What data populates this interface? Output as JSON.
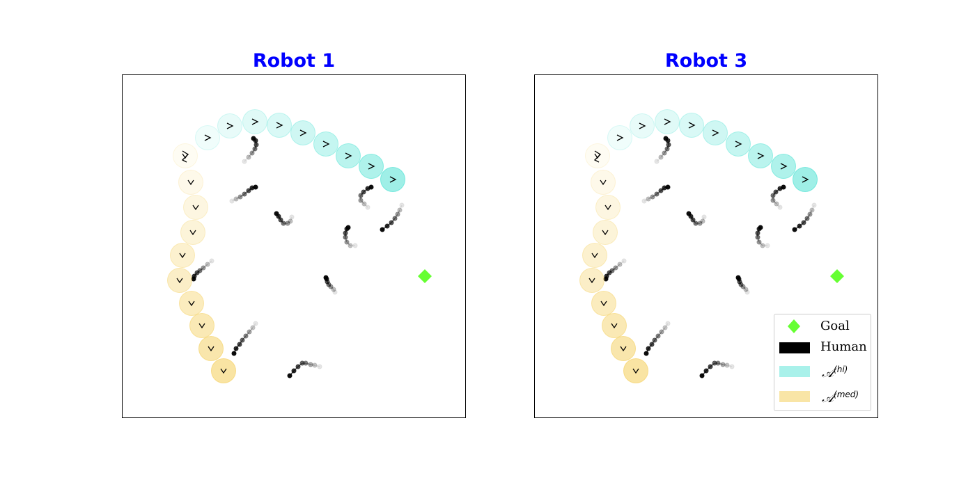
{
  "panels": [
    {
      "title": "Robot 1",
      "show_legend": false
    },
    {
      "title": "Robot 3",
      "show_legend": true
    }
  ],
  "colors": {
    "title": "#0000ff",
    "goal": "#66ff33",
    "human": "#000000",
    "a_hi": "#40e0d0",
    "a_med": "#f5d36b"
  },
  "legend": {
    "goal": "Goal",
    "human": "Human",
    "a_hi_symbol": "𝒜",
    "a_hi_sup": "(hi)",
    "a_med_symbol": "𝒜",
    "a_med_sup": "(med)"
  },
  "icons": [
    "goal-diamond-icon",
    "human-trajectory-icon",
    "robot-heading-icon"
  ]
}
